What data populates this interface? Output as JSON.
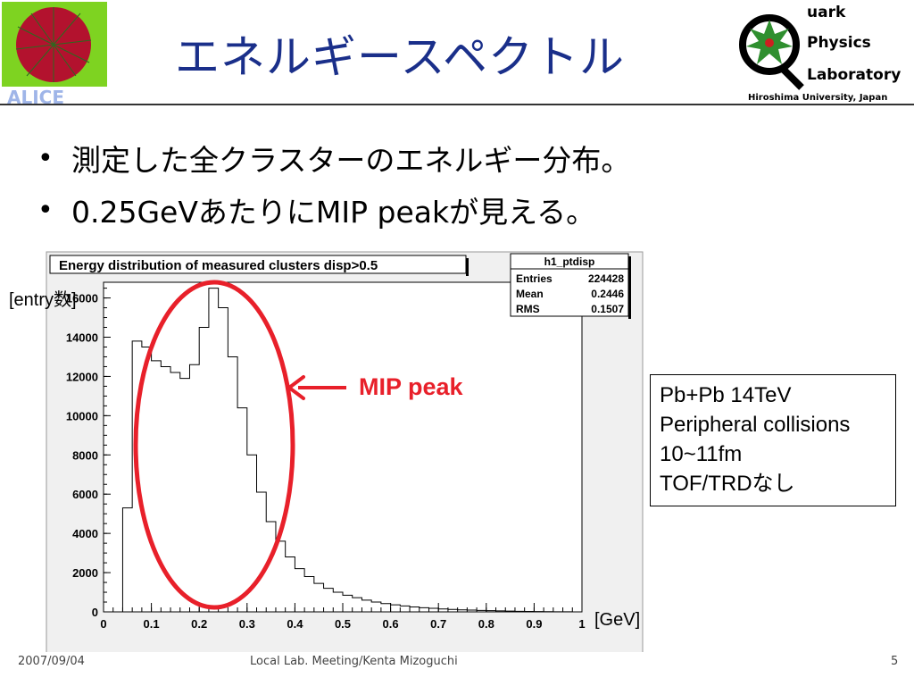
{
  "slide": {
    "title": "エネルギースペクトル",
    "bullets": [
      "測定した全クラスターのエネルギー分布。",
      "0.25GeVあたりにMIP peakが見える。"
    ],
    "logos": {
      "left_text": "ALICE",
      "right": {
        "words": [
          "uark",
          "Physics",
          "Laboratory"
        ],
        "subtitle": "Hiroshima University, Japan"
      }
    },
    "annotation": "MIP peak",
    "info_box": [
      "Pb+Pb 14TeV",
      "Peripheral collisions",
      "10~11fm",
      "TOF/TRDなし"
    ],
    "footer": {
      "date": "2007/09/04",
      "meeting": "Local Lab. Meeting/Kenta Mizoguchi",
      "page": "5"
    }
  },
  "chart_data": {
    "type": "histogram",
    "title": "Energy distribution of measured clusters disp>0.5",
    "ylabel": "[entry数]",
    "xlabel": "[GeV]",
    "xlim": [
      0,
      1
    ],
    "ylim": [
      0,
      16800
    ],
    "x_ticks": [
      "0",
      "0.1",
      "0.2",
      "0.3",
      "0.4",
      "0.5",
      "0.6",
      "0.7",
      "0.8",
      "0.9",
      "1"
    ],
    "y_ticks": [
      "0",
      "2000",
      "4000",
      "6000",
      "8000",
      "10000",
      "12000",
      "14000",
      "16000"
    ],
    "bin_width": 0.02,
    "bin_edges_start": 0.04,
    "values": [
      5300,
      13800,
      13500,
      12800,
      12500,
      12200,
      11900,
      12600,
      14500,
      16500,
      15500,
      13000,
      10400,
      8000,
      6100,
      4600,
      3600,
      2800,
      2200,
      1800,
      1450,
      1200,
      1000,
      850,
      720,
      600,
      500,
      420,
      360,
      300,
      250,
      210,
      180,
      150,
      125,
      105,
      90,
      75,
      60,
      50,
      40,
      30,
      20,
      15,
      10,
      6,
      3,
      0
    ],
    "stats": {
      "name": "h1_ptdisp",
      "rows": [
        [
          "Entries",
          "224428"
        ],
        [
          "Mean",
          "0.2446"
        ],
        [
          "RMS",
          "0.1507"
        ]
      ]
    },
    "highlight_color": "#e8202a",
    "title_color": "#1a2f8a",
    "frame_color": "#f0f0f0"
  }
}
